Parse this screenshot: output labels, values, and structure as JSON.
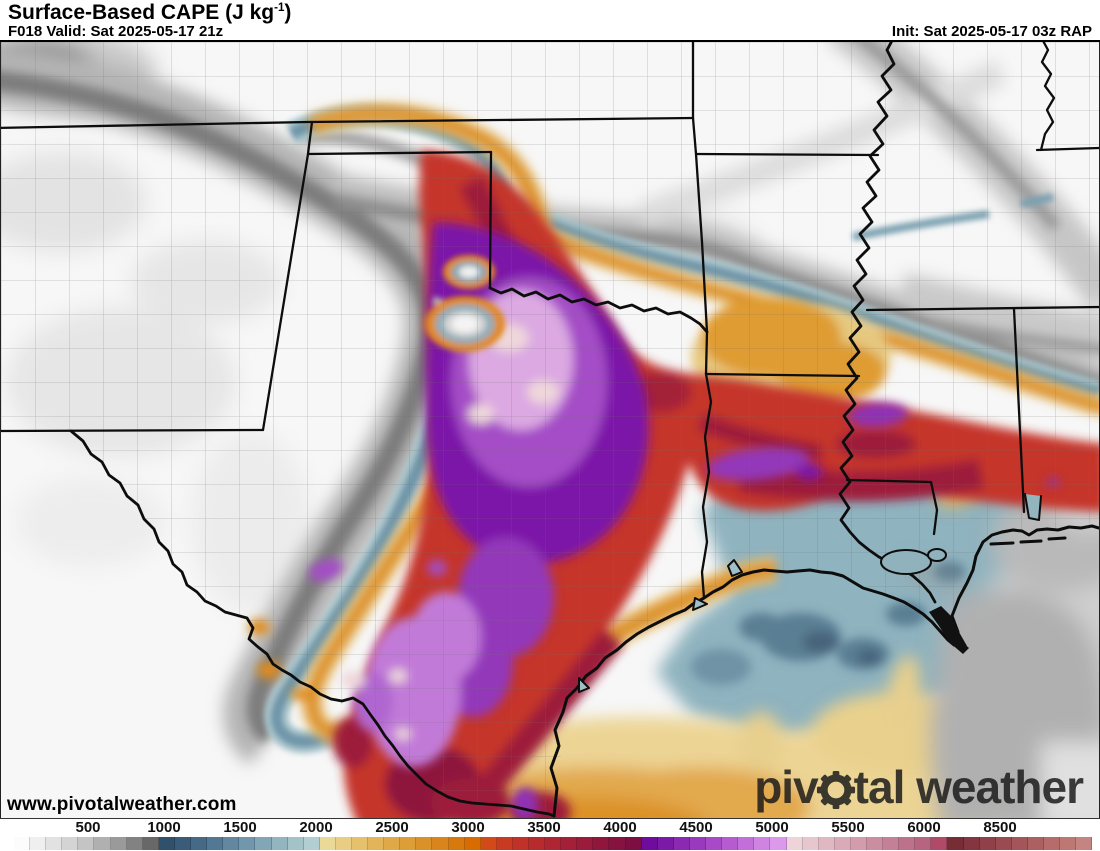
{
  "header": {
    "title_main": "Surface-Based CAPE (J kg",
    "title_sup": "-1",
    "title_end": ")",
    "forecast_line": "F018 Valid: Sat 2025-05-17 21z",
    "init_line": "Init: Sat 2025-05-17 03z RAP"
  },
  "map": {
    "watermark": "www.pivotalweather.com",
    "logo": {
      "prefix": "piv",
      "suffix": "tal",
      "second_word": "weather",
      "icon": "gear"
    },
    "palette": {
      "background": "#f7f7f7",
      "low_gray_band": "#7d7d7d",
      "marginal_teal": "#6f96aa",
      "moderate_tan": "#e6bd6d",
      "strong_orange": "#dd9126",
      "high_red": "#c5342a",
      "very_high_maroon": "#9d1d3a",
      "extreme_purple": "#7c18a8",
      "peak_lavender": "#dca9e2",
      "peak_pale_pink": "#eed7da",
      "coastal_slate": "#8fb3bf",
      "gulf_yellow": "#ecd494",
      "border_black": "#0d0d0d"
    }
  },
  "colorbar": {
    "labels": [
      "500",
      "1000",
      "1500",
      "2000",
      "2500",
      "3000",
      "3500",
      "4000",
      "4500",
      "5000",
      "5500",
      "6000",
      "8500"
    ],
    "segments": [
      "#fcfcfc",
      "#efefef",
      "#e2e2e2",
      "#d4d4d4",
      "#c4c4c4",
      "#b0b0b0",
      "#9a9a9a",
      "#828282",
      "#686868",
      "#31506b",
      "#3b5c78",
      "#466a85",
      "#537893",
      "#62879f",
      "#7296ab",
      "#82a6b5",
      "#93b5bf",
      "#a3c3c9",
      "#b1ced3",
      "#ebd998",
      "#e8cd83",
      "#e5c16e",
      "#e2b55a",
      "#dfa947",
      "#dd9d37",
      "#db9129",
      "#d9851b",
      "#d7790d",
      "#d96c00",
      "#d24a1a",
      "#c93a22",
      "#c03129",
      "#b72b2f",
      "#ae2534",
      "#a42038",
      "#9a1b3b",
      "#90163d",
      "#86123f",
      "#7c0e41",
      "#6e0c9e",
      "#7c1aa8",
      "#8b29b3",
      "#9939bd",
      "#a84ac7",
      "#b65cd0",
      "#c36fd9",
      "#cf84e1",
      "#da9ae9",
      "#eed4d8",
      "#e7c6cd",
      "#e0b8c2",
      "#d9aab7",
      "#d29cac",
      "#cb8ea1",
      "#c48096",
      "#bd728b",
      "#b66480",
      "#b14a68",
      "#762d35",
      "#833640",
      "#8f4049",
      "#9a4a51",
      "#a45559",
      "#ad6061",
      "#b56c6a",
      "#bd7874",
      "#c48481"
    ]
  }
}
